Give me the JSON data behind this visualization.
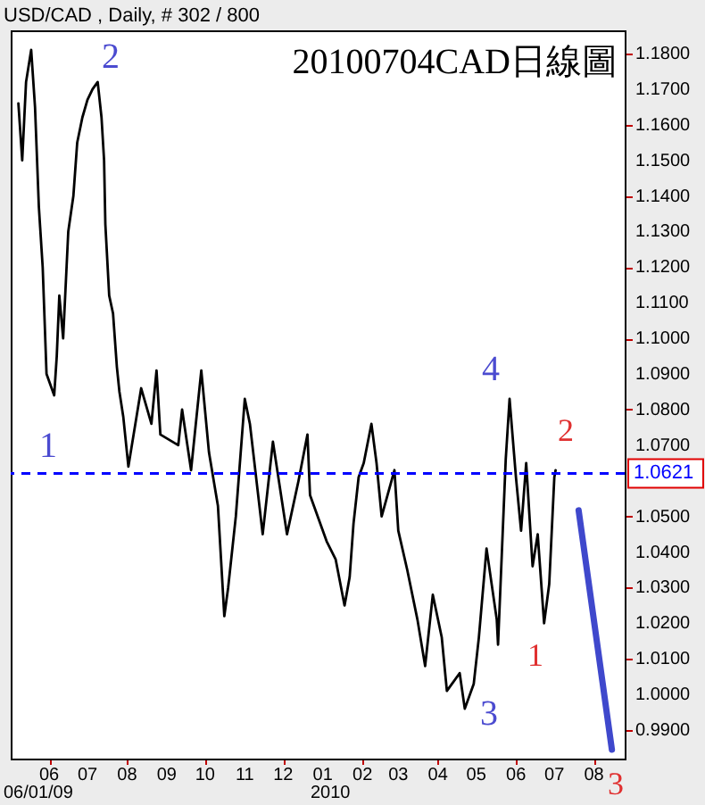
{
  "chart_data": {
    "type": "line",
    "title": "20100704CAD日線圖",
    "subtitle": "USD/CAD , Daily, # 302 / 800",
    "xlim": [
      "2009-05-02",
      "2010-08-25"
    ],
    "xticks": [
      {
        "value": "2009-06-01",
        "label": "06"
      },
      {
        "value": "2009-07-01",
        "label": "07"
      },
      {
        "value": "2009-08-01",
        "label": "08"
      },
      {
        "value": "2009-09-01",
        "label": "09"
      },
      {
        "value": "2009-10-01",
        "label": "10"
      },
      {
        "value": "2009-11-01",
        "label": "11"
      },
      {
        "value": "2009-12-01",
        "label": "12"
      },
      {
        "value": "2010-01-01",
        "label": "01"
      },
      {
        "value": "2010-02-01",
        "label": "02"
      },
      {
        "value": "2010-03-01",
        "label": "03"
      },
      {
        "value": "2010-04-01",
        "label": "04"
      },
      {
        "value": "2010-05-01",
        "label": "05"
      },
      {
        "value": "2010-06-01",
        "label": "06"
      },
      {
        "value": "2010-07-01",
        "label": "07"
      },
      {
        "value": "2010-08-01",
        "label": "08"
      }
    ],
    "ylim": [
      0.982,
      1.1865
    ],
    "yticks": [
      {
        "value": 0.99,
        "label": "0.9900"
      },
      {
        "value": 1.0,
        "label": "1.0000"
      },
      {
        "value": 1.01,
        "label": "1.0100"
      },
      {
        "value": 1.02,
        "label": "1.0200"
      },
      {
        "value": 1.03,
        "label": "1.0300"
      },
      {
        "value": 1.04,
        "label": "1.0400"
      },
      {
        "value": 1.05,
        "label": "1.0500"
      },
      {
        "value": 1.07,
        "label": "1.0700"
      },
      {
        "value": 1.08,
        "label": "1.0800"
      },
      {
        "value": 1.09,
        "label": "1.0900"
      },
      {
        "value": 1.1,
        "label": "1.1000"
      },
      {
        "value": 1.11,
        "label": "1.1100"
      },
      {
        "value": 1.12,
        "label": "1.1200"
      },
      {
        "value": 1.13,
        "label": "1.1300"
      },
      {
        "value": 1.14,
        "label": "1.1400"
      },
      {
        "value": 1.15,
        "label": "1.1500"
      },
      {
        "value": 1.16,
        "label": "1.1600"
      },
      {
        "value": 1.17,
        "label": "1.1700"
      },
      {
        "value": 1.18,
        "label": "1.1800"
      }
    ],
    "series": [
      {
        "color": "#000000",
        "x": [
          "2009-05-08",
          "2009-05-11",
          "2009-05-14",
          "2009-05-18",
          "2009-05-21",
          "2009-05-24",
          "2009-05-27",
          "2009-05-30",
          "2009-06-05",
          "2009-06-07",
          "2009-06-09",
          "2009-06-12",
          "2009-06-16",
          "2009-06-20",
          "2009-06-23",
          "2009-06-27",
          "2009-07-01",
          "2009-07-05",
          "2009-07-09",
          "2009-07-12",
          "2009-07-14",
          "2009-07-15",
          "2009-07-18",
          "2009-07-21",
          "2009-07-24",
          "2009-07-26",
          "2009-07-29",
          "2009-08-02",
          "2009-08-12",
          "2009-08-20",
          "2009-08-24",
          "2009-08-27",
          "2009-09-10",
          "2009-09-13",
          "2009-09-20",
          "2009-09-28",
          "2009-10-04",
          "2009-10-11",
          "2009-10-16",
          "2009-10-19",
          "2009-10-25",
          "2009-11-01",
          "2009-11-05",
          "2009-11-15",
          "2009-11-23",
          "2009-12-04",
          "2009-12-13",
          "2009-12-20",
          "2009-12-22",
          "2010-01-04",
          "2010-01-11",
          "2010-01-18",
          "2010-01-22",
          "2010-01-25",
          "2010-01-29",
          "2010-02-02",
          "2010-02-08",
          "2010-02-12",
          "2010-02-16",
          "2010-02-26",
          "2010-03-01",
          "2010-03-08",
          "2010-03-16",
          "2010-03-22",
          "2010-03-28",
          "2010-04-04",
          "2010-04-08",
          "2010-04-18",
          "2010-04-22",
          "2010-04-29",
          "2010-05-03",
          "2010-05-09",
          "2010-05-17",
          "2010-05-18",
          "2010-05-24",
          "2010-05-27",
          "2010-06-01",
          "2010-06-05",
          "2010-06-09",
          "2010-06-14",
          "2010-06-18",
          "2010-06-23",
          "2010-06-27",
          "2010-07-01",
          "2010-07-02"
        ],
        "values": [
          1.166,
          1.15,
          1.172,
          1.181,
          1.165,
          1.137,
          1.12,
          1.09,
          1.084,
          1.095,
          1.112,
          1.1,
          1.13,
          1.14,
          1.155,
          1.162,
          1.167,
          1.17,
          1.172,
          1.162,
          1.15,
          1.132,
          1.112,
          1.107,
          1.092,
          1.085,
          1.078,
          1.064,
          1.086,
          1.076,
          1.091,
          1.073,
          1.07,
          1.08,
          1.063,
          1.091,
          1.068,
          1.053,
          1.022,
          1.03,
          1.05,
          1.083,
          1.076,
          1.045,
          1.071,
          1.045,
          1.06,
          1.073,
          1.056,
          1.043,
          1.038,
          1.025,
          1.033,
          1.048,
          1.061,
          1.065,
          1.076,
          1.065,
          1.05,
          1.063,
          1.046,
          1.035,
          1.021,
          1.008,
          1.028,
          1.016,
          1.001,
          1.006,
          0.996,
          1.003,
          1.016,
          1.041,
          1.021,
          1.014,
          1.066,
          1.083,
          1.061,
          1.046,
          1.065,
          1.036,
          1.045,
          1.02,
          1.031,
          1.061,
          1.063
        ]
      },
      {
        "color": "#3f48cc",
        "x": [
          "2010-07-20",
          "2010-08-15"
        ],
        "values": [
          1.0517,
          0.9845
        ]
      }
    ],
    "ref_lines": [
      {
        "axis": "y",
        "value": 1.0621,
        "label": "1.0621",
        "color": "#0000ff",
        "line_style": "dashed"
      }
    ],
    "annotations": [
      "1",
      "2",
      "4",
      "3",
      "1",
      "2",
      "06/01/09",
      "2010",
      "3"
    ],
    "grid": false
  }
}
